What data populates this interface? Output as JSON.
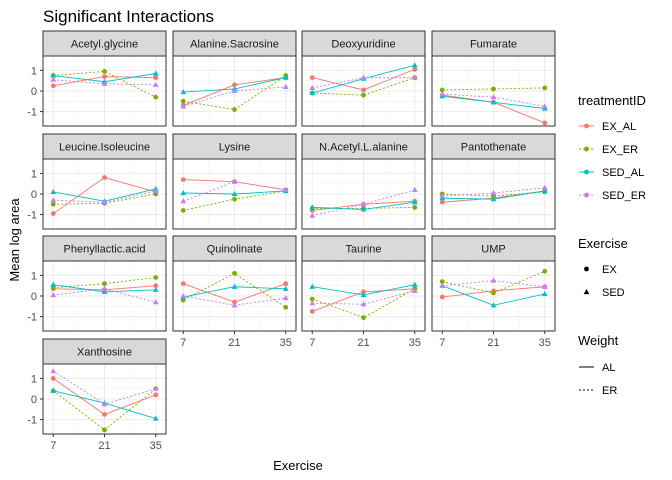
{
  "chart_data": {
    "type": "line",
    "title": "Significant Interactions",
    "xlabel": "Exercise",
    "ylabel": "Mean log area",
    "x": [
      7,
      21,
      35
    ],
    "x_tick_labels": [
      "7",
      "21",
      "35"
    ],
    "ylim": [
      -1.7,
      1.7
    ],
    "y_ticks": [
      -1,
      0,
      1
    ],
    "y_tick_labels": [
      "-1",
      "0",
      "1"
    ],
    "grid": true,
    "facet_layout": "4 columns x 4 rows",
    "colors": {
      "EX_AL": "#F8766D",
      "EX_ER": "#7CAE00",
      "SED_AL": "#00BFC4",
      "SED_ER": "#C77CFF",
      "strip_background": "#d9d9d9",
      "grid_major": "#ebebeb",
      "panel_border": "#333333"
    },
    "groups": [
      {
        "name": "EX_AL",
        "exercise": "EX",
        "weight": "AL"
      },
      {
        "name": "EX_ER",
        "exercise": "EX",
        "weight": "ER"
      },
      {
        "name": "SED_AL",
        "exercise": "SED",
        "weight": "AL"
      },
      {
        "name": "SED_ER",
        "exercise": "SED",
        "weight": "ER"
      }
    ],
    "legends": [
      {
        "title": "treatmentID",
        "entries": [
          "EX_AL",
          "EX_ER",
          "SED_AL",
          "SED_ER"
        ]
      },
      {
        "title": "Exercise",
        "entries": [
          "EX",
          "SED"
        ],
        "shapes": [
          "circle",
          "triangle"
        ]
      },
      {
        "title": "Weight",
        "entries": [
          "AL",
          "ER"
        ],
        "linetypes": [
          "solid",
          "dotted"
        ]
      }
    ],
    "legend_placement": "right",
    "facets": [
      {
        "name": "Acetyl.glycine",
        "series": {
          "EX_AL": [
            0.25,
            0.7,
            0.65
          ],
          "EX_ER": [
            0.75,
            0.95,
            -0.3
          ],
          "SED_AL": [
            0.75,
            0.45,
            0.85
          ],
          "SED_ER": [
            0.55,
            0.35,
            0.3
          ]
        }
      },
      {
        "name": "Alanine.Sacrosine",
        "series": {
          "EX_AL": [
            -0.7,
            0.3,
            0.65
          ],
          "EX_ER": [
            -0.5,
            -0.9,
            0.75
          ],
          "SED_AL": [
            -0.05,
            0.1,
            0.65
          ],
          "SED_ER": [
            -0.75,
            0.0,
            0.2
          ]
        }
      },
      {
        "name": "Deoxyuridine",
        "series": {
          "EX_AL": [
            0.65,
            0.05,
            1.05
          ],
          "EX_ER": [
            -0.1,
            -0.2,
            0.65
          ],
          "SED_AL": [
            -0.1,
            0.6,
            1.25
          ],
          "SED_ER": [
            0.15,
            0.65,
            0.65
          ]
        }
      },
      {
        "name": "Fumarate",
        "series": {
          "EX_AL": [
            -0.2,
            -0.55,
            -1.55
          ],
          "EX_ER": [
            0.05,
            0.1,
            0.15
          ],
          "SED_AL": [
            -0.25,
            -0.55,
            -0.85
          ],
          "SED_ER": [
            -0.15,
            -0.3,
            -0.75
          ]
        }
      },
      {
        "name": "Leucine.Isoleucine",
        "series": {
          "EX_AL": [
            -0.95,
            0.8,
            0.1
          ],
          "EX_ER": [
            -0.5,
            -0.45,
            0.0
          ],
          "SED_AL": [
            0.1,
            -0.35,
            0.25
          ],
          "SED_ER": [
            -0.3,
            -0.4,
            0.15
          ]
        }
      },
      {
        "name": "Lysine",
        "series": {
          "EX_AL": [
            0.7,
            0.6,
            0.2
          ],
          "EX_ER": [
            -0.8,
            -0.25,
            0.15
          ],
          "SED_AL": [
            0.05,
            0.0,
            0.15
          ],
          "SED_ER": [
            -0.35,
            0.6,
            0.2
          ]
        }
      },
      {
        "name": "N.Acetyl.L.alanine",
        "series": {
          "EX_AL": [
            -0.8,
            -0.5,
            -0.35
          ],
          "EX_ER": [
            -0.7,
            -0.7,
            -0.65
          ],
          "SED_AL": [
            -0.65,
            -0.75,
            -0.4
          ],
          "SED_ER": [
            -1.05,
            -0.5,
            0.2
          ]
        }
      },
      {
        "name": "Pantothenate",
        "series": {
          "EX_AL": [
            -0.4,
            -0.2,
            0.15
          ],
          "EX_ER": [
            0.0,
            -0.1,
            0.1
          ],
          "SED_AL": [
            -0.2,
            -0.25,
            0.15
          ],
          "SED_ER": [
            -0.1,
            0.05,
            0.3
          ]
        }
      },
      {
        "name": "Phenyllactic.acid",
        "series": {
          "EX_AL": [
            0.35,
            0.3,
            0.5
          ],
          "EX_ER": [
            0.4,
            0.6,
            0.9
          ],
          "SED_AL": [
            0.55,
            0.2,
            0.3
          ],
          "SED_ER": [
            0.05,
            0.35,
            -0.3
          ]
        }
      },
      {
        "name": "Quinolinate",
        "series": {
          "EX_AL": [
            0.6,
            -0.3,
            0.6
          ],
          "EX_ER": [
            -0.2,
            1.1,
            -0.55
          ],
          "SED_AL": [
            -0.05,
            0.45,
            0.35
          ],
          "SED_ER": [
            0.0,
            -0.45,
            -0.1
          ]
        }
      },
      {
        "name": "Taurine",
        "series": {
          "EX_AL": [
            -0.75,
            0.2,
            0.35
          ],
          "EX_ER": [
            -0.15,
            -1.05,
            0.35
          ],
          "SED_AL": [
            0.45,
            0.05,
            0.55
          ],
          "SED_ER": [
            -0.35,
            -0.4,
            0.25
          ]
        }
      },
      {
        "name": "UMP",
        "series": {
          "EX_AL": [
            -0.05,
            0.25,
            0.45
          ],
          "EX_ER": [
            0.7,
            0.15,
            1.2
          ],
          "SED_AL": [
            0.5,
            -0.45,
            0.1
          ],
          "SED_ER": [
            0.5,
            0.75,
            0.45
          ]
        }
      },
      {
        "name": "Xanthosine",
        "series": {
          "EX_AL": [
            1.0,
            -0.75,
            0.2
          ],
          "EX_ER": [
            0.4,
            -1.5,
            0.5
          ],
          "SED_AL": [
            0.4,
            -0.2,
            -0.95
          ],
          "SED_ER": [
            1.35,
            -0.25,
            0.5
          ]
        }
      }
    ]
  }
}
